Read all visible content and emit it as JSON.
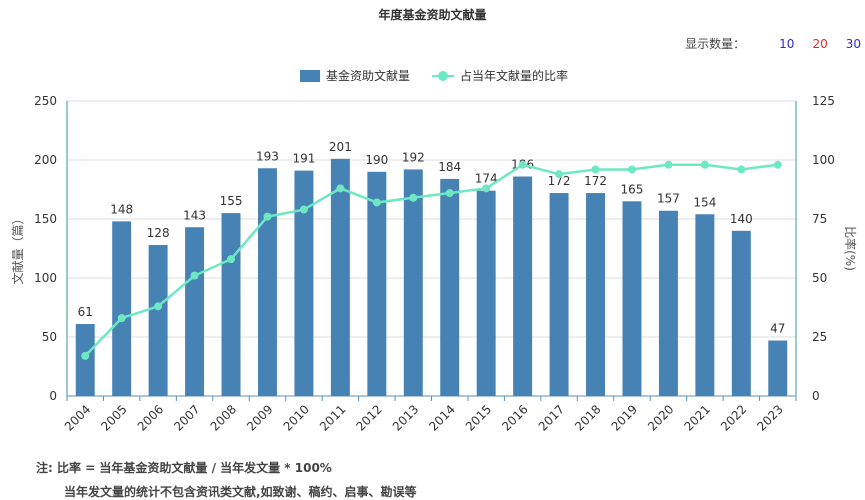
{
  "chart_data": {
    "type": "bar",
    "title": "年度基金资助文献量",
    "categories": [
      "2004",
      "2005",
      "2006",
      "2007",
      "2008",
      "2009",
      "2010",
      "2011",
      "2012",
      "2013",
      "2014",
      "2015",
      "2016",
      "2017",
      "2018",
      "2019",
      "2020",
      "2021",
      "2022",
      "2023"
    ],
    "series": [
      {
        "name": "基金资助文献量",
        "type": "bar",
        "axis": "left",
        "color": "#4682b4",
        "values": [
          61,
          148,
          128,
          143,
          155,
          193,
          191,
          201,
          190,
          192,
          184,
          174,
          186,
          172,
          172,
          165,
          157,
          154,
          140,
          47
        ]
      },
      {
        "name": "占当年文献量的比率",
        "type": "line",
        "axis": "right",
        "color": "#6de8c3",
        "values": [
          17,
          33,
          38,
          51,
          58,
          76,
          79,
          88,
          82,
          84,
          86,
          88,
          98,
          94,
          96,
          96,
          98,
          98,
          96,
          98
        ]
      }
    ],
    "ylabel_left": "文献量（篇）",
    "ylabel_right": "比率(%)",
    "ylim_left": [
      0,
      250
    ],
    "yticks_left": [
      0,
      50,
      100,
      150,
      200,
      250
    ],
    "ylim_right": [
      0,
      125
    ],
    "yticks_right": [
      0,
      25,
      50,
      75,
      100,
      125
    ],
    "grid": true,
    "legend_position": "top-center"
  },
  "controls": {
    "count_label": "显示数量：",
    "options": [
      {
        "label": "10",
        "color": "#2a2ad0"
      },
      {
        "label": "20",
        "color": "#e02a2a"
      },
      {
        "label": "30",
        "color": "#2a2ad0"
      }
    ]
  },
  "notes": {
    "line1": "注:   比率 = 当年基金资助文献量 / 当年发文量 * 100%",
    "line2": "当年发文量的统计不包含资讯类文献,如致谢、稿约、启事、勘误等"
  }
}
